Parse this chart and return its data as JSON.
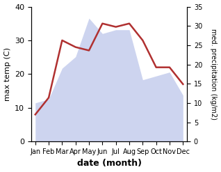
{
  "months": [
    "Jan",
    "Feb",
    "Mar",
    "Apr",
    "May",
    "Jun",
    "Jul",
    "Aug",
    "Sep",
    "Oct",
    "Nov",
    "Dec"
  ],
  "temperature": [
    8,
    13,
    30,
    28,
    27,
    35,
    34,
    35,
    30,
    22,
    22,
    17
  ],
  "precipitation": [
    10,
    11,
    19,
    22,
    32,
    28,
    29,
    29,
    16,
    17,
    18,
    12
  ],
  "temp_ylim": [
    0,
    40
  ],
  "precip_ylim": [
    0,
    35
  ],
  "temp_color": "#b03030",
  "precip_fill_color": "#c8d0ee",
  "xlabel": "date (month)",
  "ylabel_left": "max temp (C)",
  "ylabel_right": "med. precipitation (kg/m2)",
  "temp_yticks": [
    0,
    10,
    20,
    30,
    40
  ],
  "precip_yticks": [
    0,
    5,
    10,
    15,
    20,
    25,
    30,
    35
  ]
}
